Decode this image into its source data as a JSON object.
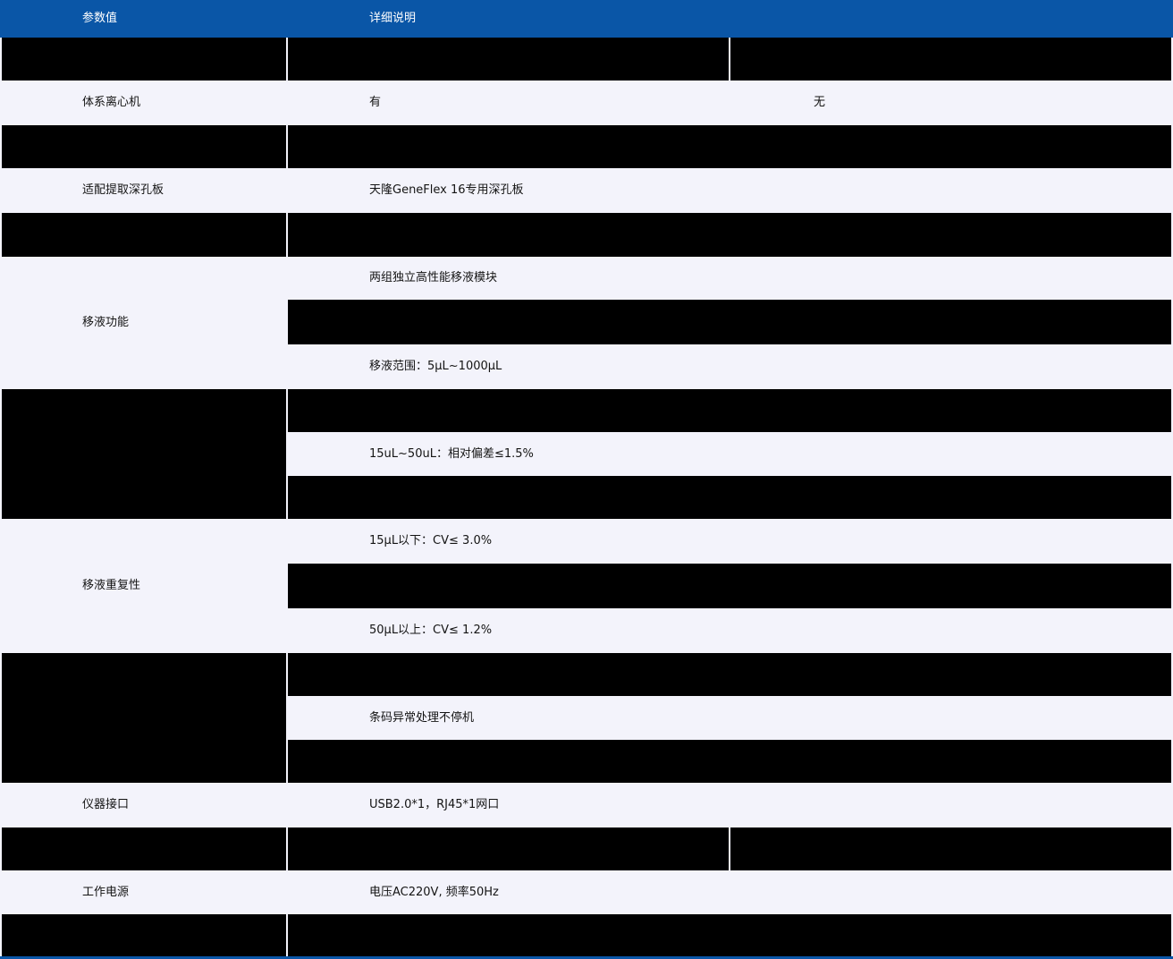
{
  "table": {
    "header": {
      "col1": "参数值",
      "col2": "详细说明"
    },
    "rows": [
      {
        "name": "centrifuge",
        "param": "体系离心机",
        "value": "有",
        "value2": "无"
      },
      {
        "name": "deep-well-plate",
        "param": "适配提取深孔板",
        "value": "天隆GeneFlex 16专用深孔板"
      },
      {
        "name": "pipetting-function",
        "param": "移液功能",
        "line1": "两组独立高性能移液模块",
        "line2": "移液范围：5μL~1000μL"
      },
      {
        "name": "pipetting-accuracy",
        "line1": "15uL~50uL：相对偏差≤1.5%"
      },
      {
        "name": "pipetting-repeatability",
        "param": "移液重复性",
        "line1": "15μL以下：CV≤ 3.0%",
        "line2": "50μL以上：CV≤ 1.2%"
      },
      {
        "name": "barcode-handling",
        "line1": "条码异常处理不停机"
      },
      {
        "name": "instrument-interface",
        "param": "仪器接口",
        "value": "USB2.0*1，RJ45*1网口"
      },
      {
        "name": "power-supply",
        "param": "工作电源",
        "value": "电压AC220V, 频率50Hz"
      }
    ],
    "colors": {
      "header_blue": "#0a56a7",
      "row_light": "#f3f3fb",
      "redacted_black": "#000000",
      "header_text": "#ffffff",
      "body_text": "#141414"
    }
  }
}
